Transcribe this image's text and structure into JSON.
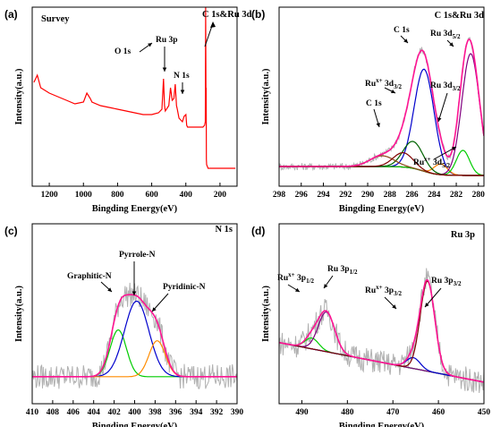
{
  "chart_data": [
    {
      "type": "line",
      "panel_label": "(a)",
      "title": "Survey",
      "xlabel": "Bingding Energy(eV)",
      "ylabel": "Intensity(a.u.)",
      "xlim": [
        1300,
        100
      ],
      "ylim": [
        0,
        100
      ],
      "xticks": [
        "1200",
        "1000",
        "800",
        "600",
        "400",
        "200"
      ],
      "xtick_values": [
        1200,
        1000,
        800,
        600,
        400,
        200
      ],
      "series": [
        {
          "color": "#ff0000",
          "x": [
            1290,
            1270,
            1250,
            1200,
            1150,
            1100,
            1050,
            1000,
            980,
            960,
            950,
            900,
            850,
            800,
            750,
            700,
            650,
            600,
            560,
            540,
            531,
            525,
            520,
            500,
            490,
            480,
            470,
            462,
            455,
            450,
            440,
            420,
            410,
            400,
            395,
            390,
            370,
            350,
            320,
            300,
            290,
            286,
            284,
            282,
            281,
            280,
            278,
            270,
            250,
            230,
            200,
            170,
            150,
            130,
            110
          ],
          "y": [
            58,
            62,
            55,
            52,
            50,
            48,
            46,
            47,
            52,
            49,
            47,
            45,
            44,
            43,
            42,
            41,
            40,
            40,
            41,
            43,
            60,
            45,
            42,
            45,
            55,
            48,
            49,
            57,
            45,
            43,
            38,
            36,
            39,
            40,
            34,
            33,
            33,
            33,
            33,
            33,
            34,
            36,
            100,
            46,
            55,
            15,
            12,
            10,
            10,
            10,
            10,
            10,
            10,
            10,
            10
          ]
        }
      ],
      "annotations": [
        {
          "text": "O 1s",
          "x": 531
        },
        {
          "text": "Ru 3p",
          "x": 462
        },
        {
          "text": "N 1s",
          "x": 400
        },
        {
          "text": "C 1s&Ru 3d",
          "x": 284
        }
      ]
    },
    {
      "type": "line",
      "panel_label": "(b)",
      "title": "C 1s&Ru 3d",
      "xlabel": "Bingding Energy(eV)",
      "ylabel": "Intensity(a.u.)",
      "xlim": [
        298,
        279.5
      ],
      "ylim": [
        0,
        100
      ],
      "xticks": [
        "298",
        "296",
        "294",
        "292",
        "290",
        "288",
        "286",
        "284",
        "282",
        "280"
      ],
      "xtick_values": [
        298,
        296,
        294,
        292,
        290,
        288,
        286,
        284,
        282,
        280
      ],
      "baseline": 2,
      "series": [
        {
          "color": "#b0b0b0",
          "role": "raw",
          "noise": true
        },
        {
          "color": "#333333",
          "role": "background"
        },
        {
          "color": "#0000cc",
          "role": "component",
          "center": 284.9,
          "height": 57,
          "width": 0.9
        },
        {
          "color": "#ff7f00",
          "role": "component",
          "center": 283.4,
          "height": 6,
          "width": 0.6
        },
        {
          "color": "#800080",
          "role": "component",
          "center": 280.7,
          "height": 68,
          "width": 0.8
        },
        {
          "color": "#00cc00",
          "role": "component",
          "center": 281.4,
          "height": 14,
          "width": 0.6
        },
        {
          "color": "#006400",
          "role": "component",
          "center": 285.9,
          "height": 15,
          "width": 0.9
        },
        {
          "color": "#8b4513",
          "role": "component",
          "center": 288.7,
          "height": 6,
          "width": 1.1
        },
        {
          "color": "#800000",
          "role": "component",
          "center": 286.8,
          "height": 8,
          "width": 0.9
        },
        {
          "color": "#ff1493",
          "role": "envelope"
        }
      ],
      "annotations": [
        {
          "text": "C 1s",
          "x": 285.4
        },
        {
          "text": "Ru 3d5/2",
          "x": 281.2
        },
        {
          "text": "Rux+ 3d3/2",
          "x": 286.2
        },
        {
          "text": "Ru 3d3/2",
          "x": 282.8
        },
        {
          "text": "C 1s",
          "x": 288.2
        },
        {
          "text": "Rux+ 3d5/2",
          "x": 283.0
        }
      ]
    },
    {
      "type": "line",
      "panel_label": "(c)",
      "title": "N 1s",
      "xlabel": "Bingding Energy(eV)",
      "ylabel": "Intensity(a.u.)",
      "xlim": [
        410,
        390
      ],
      "ylim": [
        0,
        100
      ],
      "xticks": [
        "410",
        "408",
        "406",
        "404",
        "402",
        "400",
        "398",
        "396",
        "394",
        "392",
        "390"
      ],
      "xtick_values": [
        410,
        408,
        406,
        404,
        402,
        400,
        398,
        396,
        394,
        392,
        390
      ],
      "baseline": 15,
      "series": [
        {
          "color": "#b0b0b0",
          "role": "raw",
          "noise": true
        },
        {
          "color": "#00cc00",
          "role": "component",
          "center": 401.6,
          "height": 26,
          "width": 0.8
        },
        {
          "color": "#0000cc",
          "role": "component",
          "center": 399.8,
          "height": 42,
          "width": 1.2
        },
        {
          "color": "#ff8c00",
          "role": "component",
          "center": 397.8,
          "height": 20,
          "width": 0.8
        },
        {
          "color": "#ff1493",
          "role": "envelope"
        }
      ],
      "annotations": [
        {
          "text": "Pyrrole-N",
          "x": 399.8
        },
        {
          "text": "Graphitic-N",
          "x": 401.6
        },
        {
          "text": "Pyridinic-N",
          "x": 397.8
        }
      ]
    },
    {
      "type": "line",
      "panel_label": "(d)",
      "title": "Ru 3p",
      "xlabel": "Bingding Energy(eV)",
      "ylabel": "Intensity(a.u.)",
      "xlim": [
        495,
        450
      ],
      "ylim": [
        0,
        100
      ],
      "xticks": [
        "490",
        "480",
        "470",
        "460",
        "450"
      ],
      "xtick_values": [
        490,
        480,
        470,
        460,
        450
      ],
      "series": [
        {
          "color": "#b0b0b0",
          "role": "raw",
          "noise": true
        },
        {
          "color": "#333333",
          "role": "background"
        },
        {
          "color": "#00cc00",
          "role": "component",
          "center": 487.8,
          "height": 6,
          "width": 1.5
        },
        {
          "color": "#800080",
          "role": "component",
          "center": 484.6,
          "height": 22,
          "width": 1.8
        },
        {
          "color": "#0000cc",
          "role": "component",
          "center": 465.5,
          "height": 6,
          "width": 1.5
        },
        {
          "color": "#800000",
          "role": "component",
          "center": 462.4,
          "height": 50,
          "width": 1.6
        },
        {
          "color": "#ff1493",
          "role": "envelope"
        }
      ],
      "annotations": [
        {
          "text": "Rux+ 3p1/2",
          "x": 487.8
        },
        {
          "text": "Ru 3p1/2",
          "x": 484.6
        },
        {
          "text": "Rux+ 3p3/2",
          "x": 465.5
        },
        {
          "text": "Ru 3p3/2",
          "x": 462.4
        }
      ]
    }
  ]
}
